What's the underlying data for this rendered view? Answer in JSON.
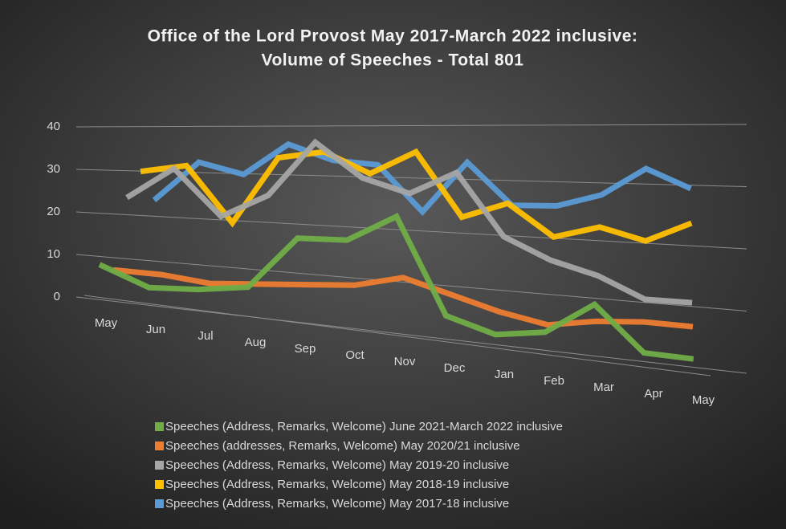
{
  "chart_data": {
    "type": "line3d",
    "title": "Office of the Lord Provost May 2017-March 2022 inclusive:",
    "subtitle": "Volume of Speeches - Total 801",
    "categories": [
      "May",
      "Jun",
      "Jul",
      "Aug",
      "Sep",
      "Oct",
      "Nov",
      "Dec",
      "Jan",
      "Feb",
      "Mar",
      "Apr",
      "May"
    ],
    "ylim": [
      0,
      40
    ],
    "yticks": [
      0,
      10,
      20,
      30,
      40
    ],
    "grid": true,
    "legend": "bottom",
    "series": [
      {
        "name": "Speeches (Address, Remarks, Welcome) June 2021-March 2022 inclusive",
        "color": "#70ad47",
        "values": [
          7,
          3,
          4,
          6,
          19,
          20,
          27,
          5,
          2,
          4,
          12,
          2,
          2
        ]
      },
      {
        "name": "Speeches (addresses, Remarks, Welcome) May 2020/21 inclusive",
        "color": "#ed7d31",
        "values": [
          3,
          3,
          2,
          3,
          4,
          5,
          8,
          5,
          2,
          0,
          2,
          3,
          3
        ]
      },
      {
        "name": "Speeches (Address, Remarks, Welcome) May 2019-20 inclusive",
        "color": "#a5a5a5",
        "values": [
          18,
          26,
          15,
          21,
          35,
          27,
          24,
          30,
          15,
          10,
          7,
          2,
          2
        ]
      },
      {
        "name": "Speeches (Address, Remarks, Welcome) May 2018-19 inclusive",
        "color": "#ffc000",
        "values": [
          22,
          24,
          10,
          27,
          29,
          24,
          30,
          14,
          18,
          10,
          13,
          10,
          15
        ]
      },
      {
        "name": "Speeches (Address, Remarks, Welcome) May 2017-18 inclusive",
        "color": "#5b9bd5",
        "values": [
          12,
          22,
          19,
          27,
          23,
          22,
          10,
          23,
          12,
          12,
          15,
          22,
          17
        ]
      }
    ]
  }
}
